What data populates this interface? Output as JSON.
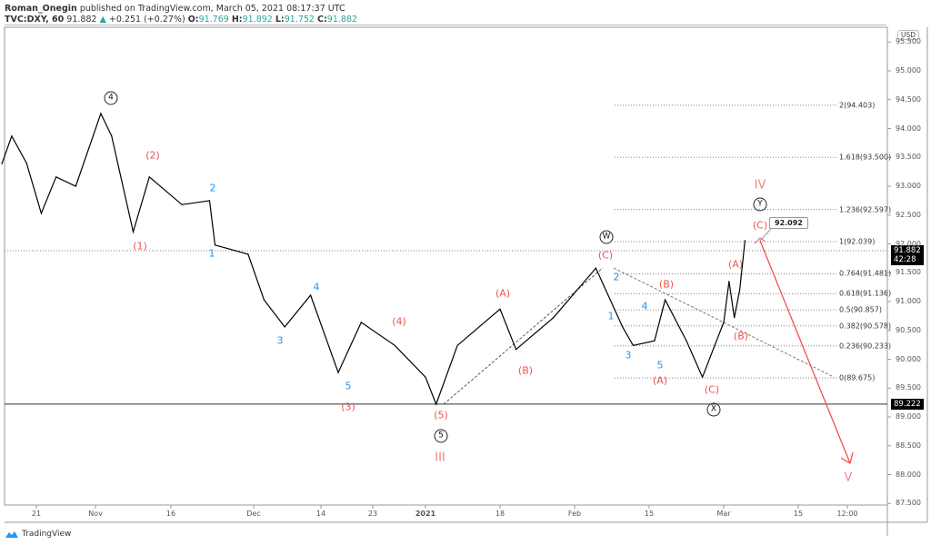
{
  "header": {
    "author": "Roman_Onegin",
    "published": "published on TradingView.com, March 05, 2021 08:17:37 UTC",
    "symbol": "TVC:DXY, 60",
    "last": "91.882",
    "change": "+0.251 (+0.27%)",
    "o_label": "O:",
    "o": "91.769",
    "h_label": "H:",
    "h": "91.892",
    "l_label": "L:",
    "l": "91.752",
    "c_label": "C:",
    "c": "91.882"
  },
  "footer": {
    "brand": "TradingView"
  },
  "colors": {
    "up": "#26a69a",
    "wave_red": "#f0524f",
    "wave_blue": "#2196f3",
    "roman": "#f2847e",
    "price": "#000000"
  },
  "chart_data": {
    "type": "line",
    "title": "",
    "currency": "USD",
    "x_ticks": [
      "21",
      "Nov",
      "16",
      "Dec",
      "14",
      "23",
      "2021",
      "18",
      "Feb",
      "15",
      "Mar",
      "15",
      "12:00"
    ],
    "y_ticks": [
      "95.500",
      "95.000",
      "94.500",
      "94.000",
      "93.500",
      "93.000",
      "92.500",
      "92.000",
      "91.500",
      "91.000",
      "90.500",
      "90.000",
      "89.500",
      "89.000",
      "88.500",
      "88.000",
      "87.500"
    ],
    "ylim": [
      87.5,
      95.5
    ],
    "grid": false,
    "series": [
      {
        "points": [
          [
            "2020-10-14",
            93.39
          ],
          [
            "2020-10-16",
            93.87
          ],
          [
            "2020-10-19",
            93.4
          ],
          [
            "2020-10-22",
            92.53
          ],
          [
            "2020-10-25",
            93.16
          ],
          [
            "2020-10-29",
            93.0
          ],
          [
            "2020-11-03",
            94.26
          ],
          [
            "2020-11-05",
            93.87
          ],
          [
            "2020-11-09",
            92.21
          ],
          [
            "2020-11-12",
            93.16
          ],
          [
            "2020-11-18",
            92.68
          ],
          [
            "2020-11-23",
            92.75
          ],
          [
            "2020-11-24",
            91.98
          ],
          [
            "2020-11-30",
            91.82
          ],
          [
            "2020-12-03",
            91.03
          ],
          [
            "2020-12-07",
            90.56
          ],
          [
            "2020-12-12",
            91.11
          ],
          [
            "2020-12-17",
            89.77
          ],
          [
            "2020-12-21",
            90.64
          ],
          [
            "2020-12-28",
            90.24
          ],
          [
            "2021-01-04",
            89.69
          ],
          [
            "2021-01-06",
            89.22
          ],
          [
            "2021-01-10",
            90.24
          ],
          [
            "2021-01-18",
            90.87
          ],
          [
            "2021-01-21",
            90.17
          ],
          [
            "2021-01-28",
            90.72
          ],
          [
            "2021-02-05",
            91.58
          ],
          [
            "2021-02-10",
            90.56
          ],
          [
            "2021-02-12",
            90.24
          ],
          [
            "2021-02-16",
            90.32
          ],
          [
            "2021-02-18",
            91.03
          ],
          [
            "2021-02-22",
            90.32
          ],
          [
            "2021-02-25",
            89.69
          ],
          [
            "2021-03-01",
            90.64
          ],
          [
            "2021-03-02",
            91.35
          ],
          [
            "2021-03-03",
            90.72
          ],
          [
            "2021-03-04",
            91.2
          ],
          [
            "2021-03-05",
            92.06
          ]
        ]
      }
    ],
    "last_price": "91.882",
    "countdown": "42:28",
    "support_level": "89.222",
    "callout": "92.092",
    "fib_levels": [
      "2(94.403)",
      "1.618(93.500)",
      "1.236(92.597)",
      "1(92.039)",
      "0.764(91.481)",
      "0.618(91.136)",
      "0.5(90.857)",
      "0.382(90.578)",
      "0.236(90.233)",
      "0(89.675)"
    ],
    "fib_values": [
      94.403,
      93.5,
      92.597,
      92.039,
      91.481,
      91.136,
      90.857,
      90.578,
      90.233,
      89.675
    ],
    "wave_labels": [
      "4",
      "(2)",
      "(1)",
      "2",
      "1",
      "4",
      "3",
      "(4)",
      "5",
      "(3)",
      "(5)",
      "5",
      "III",
      "(A)",
      "(B)",
      "W",
      "(C)",
      "2",
      "1",
      "4",
      "3",
      "5",
      "(B)",
      "(A)",
      "(C)",
      "X",
      "(A)",
      "(B)",
      "(C)",
      "Y",
      "IV",
      "V"
    ]
  }
}
